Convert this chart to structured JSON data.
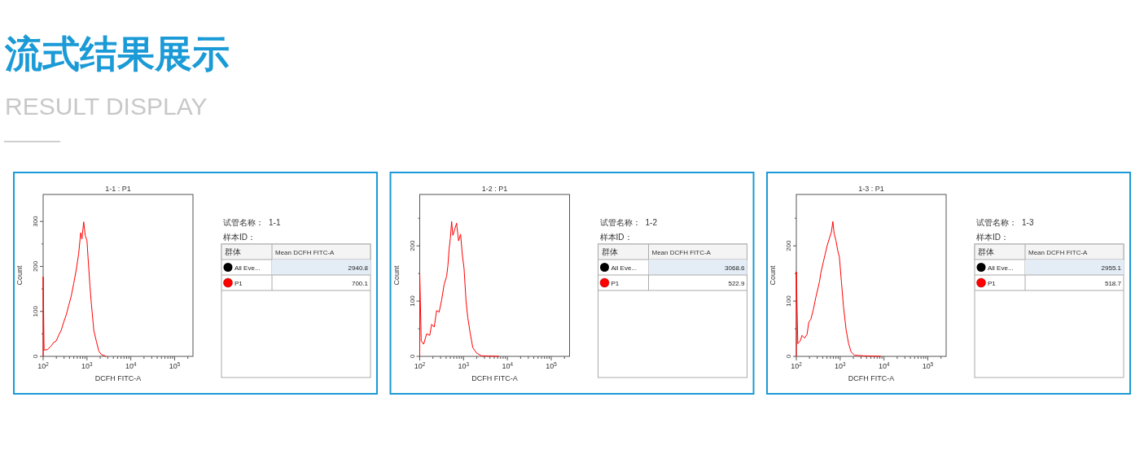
{
  "chart_data": [
    {
      "type": "other",
      "title": "流式结果展示",
      "subtitle": "RESULT DISPLAY"
    },
    {
      "type": "line",
      "title": "1-1 : P1",
      "xlabel": "DCFH FITC-A",
      "ylabel": "Count",
      "log": "x",
      "xlim": [
        100,
        262144
      ],
      "ylim": [
        0,
        360
      ],
      "xticks": [
        {
          "value": 100,
          "label": "10$^{2}$"
        },
        {
          "value": 200,
          "label": null
        },
        {
          "value": 300,
          "label": null
        },
        {
          "value": 400,
          "label": null
        },
        {
          "value": 500,
          "label": null
        },
        {
          "value": 600,
          "label": null
        },
        {
          "value": 700,
          "label": null
        },
        {
          "value": 800,
          "label": null
        },
        {
          "value": 900,
          "label": null
        },
        {
          "value": 1000,
          "label": "10$^{3}$"
        },
        {
          "value": 2000,
          "label": null
        },
        {
          "value": 3000,
          "label": null
        },
        {
          "value": 4000,
          "label": null
        },
        {
          "value": 5000,
          "label": null
        },
        {
          "value": 6000,
          "label": null
        },
        {
          "value": 7000,
          "label": null
        },
        {
          "value": 8000,
          "label": null
        },
        {
          "value": 9000,
          "label": null
        },
        {
          "value": 10000,
          "label": "10$^{4}$"
        },
        {
          "value": 20000,
          "label": null
        },
        {
          "value": 30000,
          "label": null
        },
        {
          "value": 40000,
          "label": null
        },
        {
          "value": 50000,
          "label": null
        },
        {
          "value": 60000,
          "label": null
        },
        {
          "value": 70000,
          "label": null
        },
        {
          "value": 80000,
          "label": null
        },
        {
          "value": 90000,
          "label": null
        },
        {
          "value": 100000,
          "label": "10$^{5}$"
        },
        {
          "value": 200000,
          "label": null
        }
      ],
      "yticks": [
        0,
        {
          "value": 50,
          "label": null
        },
        100,
        {
          "value": 150,
          "label": null
        },
        200,
        {
          "value": 250,
          "label": null
        },
        300
      ],
      "series": [
        {
          "color": "#ff0000",
          "x": [
            100,
            100,
            105,
            125,
            152,
            174,
            198,
            226,
            258,
            294,
            336,
            383,
            437,
            498,
            568,
            647,
            719,
            768,
            842,
            912,
            1000,
            1092,
            1171,
            1253,
            1431,
            1632,
            1861,
            2123,
            2754
          ],
          "values": [
            0,
            177,
            14,
            15,
            23,
            31,
            34,
            47,
            58,
            76,
            92,
            113,
            134,
            162,
            192,
            229,
            275,
            261,
            299,
            269,
            257,
            199,
            156,
            119,
            58,
            34,
            12,
            4,
            0
          ]
        }
      ],
      "annotations": [
        "试管名称：",
        "1-1",
        "样本ID：",
        "群体",
        "Mean DCFH FITC-A",
        "All Eve...",
        "2940.8",
        "P1",
        "700.1"
      ]
    },
    {
      "type": "line",
      "title": "1-2 : P1",
      "xlabel": "DCFH FITC-A",
      "ylabel": "Count",
      "log": "x",
      "xlim": [
        100,
        262144
      ],
      "ylim": [
        0,
        293
      ],
      "xticks": [
        {
          "value": 100,
          "label": "10$^{2}$"
        },
        {
          "value": 200,
          "label": null
        },
        {
          "value": 300,
          "label": null
        },
        {
          "value": 400,
          "label": null
        },
        {
          "value": 500,
          "label": null
        },
        {
          "value": 600,
          "label": null
        },
        {
          "value": 700,
          "label": null
        },
        {
          "value": 800,
          "label": null
        },
        {
          "value": 900,
          "label": null
        },
        {
          "value": 1000,
          "label": "10$^{3}$"
        },
        {
          "value": 2000,
          "label": null
        },
        {
          "value": 3000,
          "label": null
        },
        {
          "value": 4000,
          "label": null
        },
        {
          "value": 5000,
          "label": null
        },
        {
          "value": 6000,
          "label": null
        },
        {
          "value": 7000,
          "label": null
        },
        {
          "value": 8000,
          "label": null
        },
        {
          "value": 9000,
          "label": null
        },
        {
          "value": 10000,
          "label": "10$^{4}$"
        },
        {
          "value": 20000,
          "label": null
        },
        {
          "value": 30000,
          "label": null
        },
        {
          "value": 40000,
          "label": null
        },
        {
          "value": 50000,
          "label": null
        },
        {
          "value": 60000,
          "label": null
        },
        {
          "value": 70000,
          "label": null
        },
        {
          "value": 80000,
          "label": null
        },
        {
          "value": 90000,
          "label": null
        },
        {
          "value": 100000,
          "label": "10$^{5}$"
        },
        {
          "value": 200000,
          "label": null
        }
      ],
      "yticks": [
        0,
        {
          "value": 50,
          "label": null
        },
        100,
        {
          "value": 150,
          "label": null
        },
        200,
        {
          "value": 250,
          "label": null
        }
      ],
      "series": [
        {
          "color": "#ff0000",
          "x": [
            100,
            100,
            108,
            123,
            144,
            169,
            187,
            214,
            243,
            277,
            316,
            360,
            411,
            439,
            468,
            500,
            534,
            570,
            624,
            693,
            770,
            855,
            937,
            1026,
            1140,
            1250,
            1423,
            1622,
            1974,
            2564,
            6410
          ],
          "values": [
            0,
            150,
            28,
            22,
            41,
            38,
            58,
            53,
            83,
            80,
            102,
            130,
            145,
            164,
            194,
            214,
            244,
            219,
            229,
            241,
            209,
            221,
            184,
            159,
            100,
            70,
            41,
            16,
            6,
            1,
            0
          ]
        }
      ],
      "annotations": [
        "试管名称：",
        "1-2",
        "样本ID：",
        "群体",
        "Mean DCFH FITC-A",
        "All Eve...",
        "3068.6",
        "P1",
        "522.9"
      ]
    },
    {
      "type": "line",
      "title": "1-3 : P1",
      "xlabel": "DCFH FITC-A",
      "ylabel": "Count",
      "log": "x",
      "xlim": [
        100,
        262144
      ],
      "ylim": [
        0,
        293
      ],
      "xticks": [
        {
          "value": 100,
          "label": "10$^{2}$"
        },
        {
          "value": 200,
          "label": null
        },
        {
          "value": 300,
          "label": null
        },
        {
          "value": 400,
          "label": null
        },
        {
          "value": 500,
          "label": null
        },
        {
          "value": 600,
          "label": null
        },
        {
          "value": 700,
          "label": null
        },
        {
          "value": 800,
          "label": null
        },
        {
          "value": 900,
          "label": null
        },
        {
          "value": 1000,
          "label": "10$^{3}$"
        },
        {
          "value": 2000,
          "label": null
        },
        {
          "value": 3000,
          "label": null
        },
        {
          "value": 4000,
          "label": null
        },
        {
          "value": 5000,
          "label": null
        },
        {
          "value": 6000,
          "label": null
        },
        {
          "value": 7000,
          "label": null
        },
        {
          "value": 8000,
          "label": null
        },
        {
          "value": 9000,
          "label": null
        },
        {
          "value": 10000,
          "label": "10$^{4}$"
        },
        {
          "value": 20000,
          "label": null
        },
        {
          "value": 30000,
          "label": null
        },
        {
          "value": 40000,
          "label": null
        },
        {
          "value": 50000,
          "label": null
        },
        {
          "value": 60000,
          "label": null
        },
        {
          "value": 70000,
          "label": null
        },
        {
          "value": 80000,
          "label": null
        },
        {
          "value": 90000,
          "label": null
        },
        {
          "value": 100000,
          "label": "10$^{5}$"
        },
        {
          "value": 200000,
          "label": null
        }
      ],
      "yticks": [
        0,
        {
          "value": 50,
          "label": null
        },
        100,
        {
          "value": 150,
          "label": null
        },
        200,
        {
          "value": 250,
          "label": null
        }
      ],
      "series": [
        {
          "color": "#ff0000",
          "x": [
            100,
            100,
            108,
            123,
            135,
            154,
            176,
            193,
            214,
            245,
            279,
            318,
            339,
            363,
            414,
            504,
            575,
            632,
            682,
            730,
            800,
            889,
            960,
            1067,
            1186,
            1368,
            1560,
            1780,
            2128,
            3405,
            8530
          ],
          "values": [
            0,
            153,
            23,
            28,
            38,
            33,
            40,
            62,
            67,
            85,
            107,
            126,
            136,
            151,
            171,
            200,
            215,
            225,
            244,
            222,
            210,
            190,
            180,
            136,
            92,
            48,
            23,
            8,
            2,
            1,
            0
          ]
        }
      ],
      "annotations": [
        "试管名称：",
        "1-3",
        "样本ID：",
        "群体",
        "Mean DCFH FITC-A",
        "All Eve...",
        "2955.1",
        "P1",
        "518.7"
      ]
    }
  ]
}
